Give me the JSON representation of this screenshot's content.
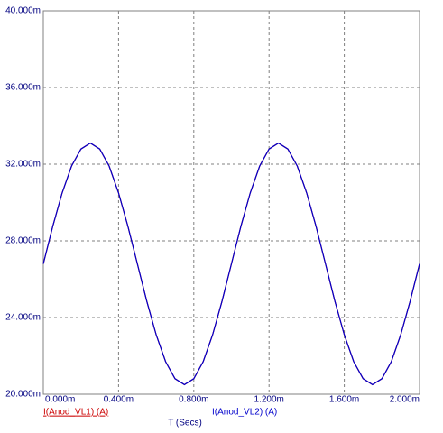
{
  "chart_data": {
    "type": "line",
    "x_label": "T (Secs)",
    "x": [
      0,
      0.05,
      0.1,
      0.15,
      0.2,
      0.25,
      0.3,
      0.35,
      0.4,
      0.45,
      0.5,
      0.55,
      0.6,
      0.65,
      0.7,
      0.75,
      0.8,
      0.85,
      0.9,
      0.95,
      1.0,
      1.05,
      1.1,
      1.15,
      1.2,
      1.25,
      1.3,
      1.35,
      1.4,
      1.45,
      1.5,
      1.55,
      1.6,
      1.65,
      1.7,
      1.75,
      1.8,
      1.85,
      1.9,
      1.95,
      2.0
    ],
    "series": [
      {
        "name": "I(Anod_VL1) (A)",
        "color": "#cc0000",
        "values": [
          26.8,
          28.75,
          30.5,
          31.9,
          32.79,
          33.1,
          32.79,
          31.9,
          30.5,
          28.75,
          26.8,
          24.85,
          23.1,
          21.7,
          20.81,
          20.5,
          20.81,
          21.7,
          23.1,
          24.85,
          26.8,
          28.75,
          30.5,
          31.9,
          32.79,
          33.1,
          32.79,
          31.9,
          30.5,
          28.75,
          26.8,
          24.85,
          23.1,
          21.7,
          20.81,
          20.5,
          20.81,
          21.7,
          23.1,
          24.85,
          26.8
        ]
      },
      {
        "name": "I(Anod_VL2) (A)",
        "color": "#0000cc",
        "values": [
          26.8,
          28.75,
          30.5,
          31.9,
          32.79,
          33.1,
          32.79,
          31.9,
          30.5,
          28.75,
          26.8,
          24.85,
          23.1,
          21.7,
          20.81,
          20.5,
          20.81,
          21.7,
          23.1,
          24.85,
          26.8,
          28.75,
          30.5,
          31.9,
          32.79,
          33.1,
          32.79,
          31.9,
          30.5,
          28.75,
          26.8,
          24.85,
          23.1,
          21.7,
          20.81,
          20.5,
          20.81,
          21.7,
          23.1,
          24.85,
          26.8
        ]
      }
    ],
    "xlim": [
      0,
      2.0
    ],
    "xticks": [
      {
        "value": 0,
        "label": "0.000m"
      },
      {
        "value": 0.4,
        "label": "0.400m"
      },
      {
        "value": 0.8,
        "label": "0.800m"
      },
      {
        "value": 1.2,
        "label": "1.200m"
      },
      {
        "value": 1.6,
        "label": "1.600m"
      },
      {
        "value": 2.0,
        "label": "2.000m"
      }
    ],
    "ylim": [
      20,
      40
    ],
    "yticks": [
      {
        "value": 20,
        "label": "20.000m"
      },
      {
        "value": 24,
        "label": "24.000m"
      },
      {
        "value": 28,
        "label": "28.000m"
      },
      {
        "value": 32,
        "label": "32.000m"
      },
      {
        "value": 36,
        "label": "36.000m"
      },
      {
        "value": 40,
        "label": "40.000m"
      }
    ],
    "grid": true
  }
}
